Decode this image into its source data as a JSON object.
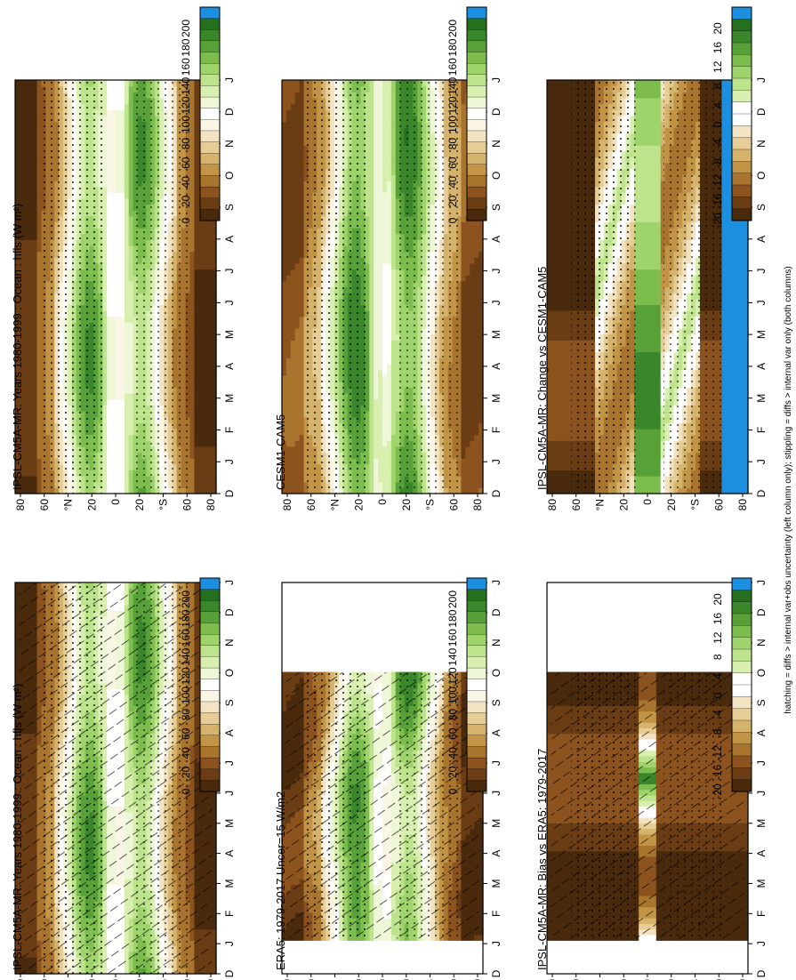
{
  "caption": "hatching = diffs > internal var+obs uncertainty (left column only); stippling = diffs > internal var only (both columns)",
  "palette": {
    "abs": [
      "#4a2a0c",
      "#6b3d14",
      "#8c531f",
      "#a8742e",
      "#c29546",
      "#d6b36c",
      "#e6cd96",
      "#f2e4c2",
      "#fbf5e6",
      "#ffffff",
      "#eef7d8",
      "#d8efb0",
      "#bde38c",
      "#9fd36c",
      "#7cbd4e",
      "#58a139",
      "#3a862b",
      "#24701f",
      "#1d8fe1"
    ],
    "diff": [
      "#4a2a0c",
      "#6b3d14",
      "#8c531f",
      "#a8742e",
      "#c29546",
      "#d6b36c",
      "#e6cd96",
      "#f2e4c2",
      "#ffffff",
      "#ffffff",
      "#d8efb0",
      "#bde38c",
      "#9fd36c",
      "#7cbd4e",
      "#58a139",
      "#3a862b",
      "#24701f",
      "#1d8fe1"
    ]
  },
  "colorbars": {
    "abs_labels": [
      "200",
      "180",
      "160",
      "140",
      "120",
      "100",
      "80",
      "60",
      "40",
      "20",
      "0"
    ],
    "diff_labels": [
      "20",
      "16",
      "12",
      "8",
      "4",
      "0",
      "-4",
      "-8",
      "-12",
      "-16",
      "-20"
    ]
  },
  "axes": {
    "months": [
      "D",
      "J",
      "F",
      "M",
      "A",
      "M",
      "J",
      "J",
      "A",
      "S",
      "O",
      "N",
      "D",
      "J"
    ],
    "lat_labels": [
      "80",
      "60",
      "°N",
      "20",
      "0",
      "20",
      "°S",
      "60",
      "80"
    ]
  },
  "panels": [
    {
      "id": "left-top",
      "title": "IPSL-CM5A-MR: Years 1980-1999 : Ocean : hfls (W m²)",
      "hatch": true,
      "stipple": true,
      "bar": "abs"
    },
    {
      "id": "left-mid",
      "title": "ERA5: 1979-2017 Uncer=15 W/m2",
      "hatch": true,
      "stipple": true,
      "bar": "abs"
    },
    {
      "id": "left-bot",
      "title": "IPSL-CM5A-MR: Bias vs ERA5: 1979-2017",
      "hatch": true,
      "stipple": true,
      "bar": "diff"
    },
    {
      "id": "right-top",
      "title": "IPSL-CM5A-MR: Years 1980-1999 : Ocean : hfls (W m²)",
      "hatch": false,
      "stipple": true,
      "bar": "abs"
    },
    {
      "id": "right-mid",
      "title": "CESM1-CAM5",
      "hatch": false,
      "stipple": true,
      "bar": "abs"
    },
    {
      "id": "right-bot",
      "title": "IPSL-CM5A-MR: Change vs CESM1-CAM5",
      "hatch": false,
      "stipple": true,
      "bar": "diff"
    }
  ],
  "chart_data": [
    {
      "type": "heatmap",
      "title": "IPSL-CM5A-MR: Years 1980-1999 : Ocean : hfls (W m²)",
      "xlabel": "latitude",
      "ylabel": "month",
      "x": [
        "80N",
        "60N",
        "40N",
        "20N",
        "0",
        "20S",
        "40S",
        "60S",
        "80S"
      ],
      "y": [
        "D",
        "J",
        "F",
        "M",
        "A",
        "M",
        "J",
        "J",
        "A",
        "S",
        "O",
        "N",
        "D",
        "J"
      ],
      "zlim": [
        0,
        200
      ],
      "profile_by_lat": [
        20,
        40,
        90,
        140,
        110,
        140,
        100,
        40,
        20
      ]
    },
    {
      "type": "heatmap",
      "title": "ERA5: 1979-2017 Uncer=15 W/m2",
      "xlabel": "latitude",
      "ylabel": "month",
      "x": [
        "80N",
        "60N",
        "40N",
        "20N",
        "0",
        "20S",
        "40S",
        "60S",
        "80S"
      ],
      "y": [
        "D",
        "J",
        "F",
        "M",
        "A",
        "M",
        "J",
        "J",
        "A",
        "S",
        "O",
        "N",
        "D",
        "J"
      ],
      "zlim": [
        0,
        200
      ],
      "profile_by_lat": [
        5,
        35,
        100,
        150,
        110,
        150,
        105,
        35,
        5
      ]
    },
    {
      "type": "heatmap",
      "title": "IPSL-CM5A-MR: Bias vs ERA5: 1979-2017",
      "xlabel": "latitude",
      "ylabel": "month",
      "x": [
        "80N",
        "60N",
        "40N",
        "20N",
        "0",
        "20S",
        "40S",
        "60S",
        "80S"
      ],
      "y": [
        "D",
        "J",
        "F",
        "M",
        "A",
        "M",
        "J",
        "J",
        "A",
        "S",
        "O",
        "N",
        "D",
        "J"
      ],
      "zlim": [
        -20,
        20
      ],
      "profile_by_lat": [
        -20,
        -20,
        -20,
        -20,
        -20,
        -20,
        -20,
        -20,
        -20
      ]
    },
    {
      "type": "heatmap",
      "title": "IPSL-CM5A-MR: Years 1980-1999 : Ocean : hfls (W m²)",
      "xlabel": "latitude",
      "ylabel": "month",
      "x": [
        "80N",
        "60N",
        "40N",
        "20N",
        "0",
        "20S",
        "40S",
        "60S",
        "80S"
      ],
      "y": [
        "D",
        "J",
        "F",
        "M",
        "A",
        "M",
        "J",
        "J",
        "A",
        "S",
        "O",
        "N",
        "D",
        "J"
      ],
      "zlim": [
        0,
        200
      ],
      "profile_by_lat": [
        20,
        40,
        90,
        140,
        110,
        140,
        100,
        40,
        20
      ]
    },
    {
      "type": "heatmap",
      "title": "CESM1-CAM5",
      "xlabel": "latitude",
      "ylabel": "month",
      "x": [
        "80N",
        "60N",
        "40N",
        "20N",
        "0",
        "20S",
        "40S",
        "60S",
        "80S"
      ],
      "y": [
        "D",
        "J",
        "F",
        "M",
        "A",
        "M",
        "J",
        "J",
        "A",
        "S",
        "O",
        "N",
        "D",
        "J"
      ],
      "zlim": [
        0,
        200
      ],
      "profile_by_lat": [
        15,
        40,
        100,
        150,
        110,
        150,
        100,
        40,
        15
      ]
    },
    {
      "type": "heatmap",
      "title": "IPSL-CM5A-MR: Change vs CESM1-CAM5",
      "xlabel": "latitude",
      "ylabel": "month",
      "x": [
        "80N",
        "60N",
        "40N",
        "20N",
        "0",
        "20S",
        "40S",
        "60S",
        "80S"
      ],
      "y": [
        "D",
        "J",
        "F",
        "M",
        "A",
        "M",
        "J",
        "J",
        "A",
        "S",
        "O",
        "N",
        "D",
        "J"
      ],
      "zlim": [
        -20,
        20
      ],
      "profile_by_lat": [
        -20,
        -20,
        0,
        8,
        12,
        8,
        0,
        -20,
        20
      ]
    }
  ]
}
